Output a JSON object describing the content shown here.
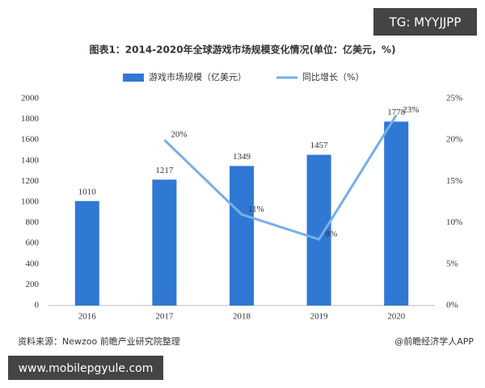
{
  "badge": "TG: MYYJJPP",
  "footer_url": "www.mobilepgyule.com",
  "chart_data": {
    "type": "bar",
    "title": "图表1：2014-2020年全球游戏市场规模变化情况(单位：亿美元，%)",
    "categories": [
      "2016",
      "2017",
      "2018",
      "2019",
      "2020"
    ],
    "series": [
      {
        "name": "游戏市场规模（亿美元）",
        "type": "bar",
        "color": "#2f78d4",
        "values": [
          1010,
          1217,
          1349,
          1457,
          1778
        ]
      },
      {
        "name": "同比增长（%）",
        "type": "line",
        "axis": "y2",
        "color": "#76aee9",
        "values": [
          null,
          20,
          11,
          8,
          23
        ],
        "value_labels": [
          null,
          "20%",
          "11%",
          "8%",
          "23%"
        ]
      }
    ],
    "ylim": [
      0,
      2000
    ],
    "yticks": [
      0,
      200,
      400,
      600,
      800,
      1000,
      1200,
      1400,
      1600,
      1800,
      2000
    ],
    "y2lim": [
      0,
      25
    ],
    "y2ticks": [
      {
        "value": 0,
        "label": "0%"
      },
      {
        "value": 5,
        "label": "5%"
      },
      {
        "value": 10,
        "label": "10%"
      },
      {
        "value": 15,
        "label": "15%"
      },
      {
        "value": 20,
        "label": "20%"
      },
      {
        "value": 25,
        "label": "25%"
      }
    ],
    "legend": "top",
    "source": "资料来源：Newzoo 前瞻产业研究院整理",
    "credit": "@前瞻经济学人APP"
  }
}
